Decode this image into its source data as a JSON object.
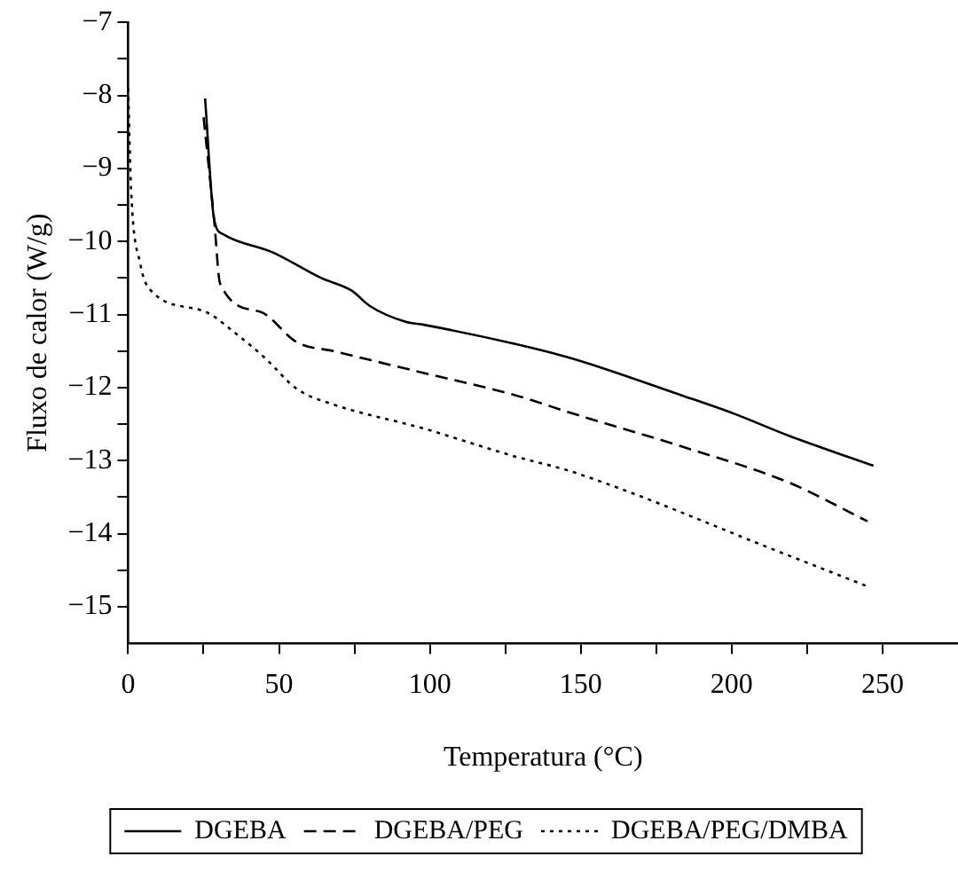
{
  "chart_data": {
    "type": "line",
    "xlabel": "Temperatura (°C)",
    "ylabel": "Fluxo de calor (W/g)",
    "xlim": [
      0,
      275
    ],
    "xticks": [
      0,
      {
        "value": 25,
        "label": null
      },
      50,
      {
        "value": 75,
        "label": null
      },
      100,
      {
        "value": 125,
        "label": null
      },
      150,
      {
        "value": 175,
        "label": null
      },
      200,
      {
        "value": 225,
        "label": null
      },
      250
    ],
    "ylim": [
      -15.5,
      -7
    ],
    "yticks": [
      -7,
      {
        "value": -7.5,
        "label": null
      },
      -8,
      {
        "value": -8.5,
        "label": null
      },
      -9,
      {
        "value": -9.5,
        "label": null
      },
      -10,
      {
        "value": -10.5,
        "label": null
      },
      -11,
      {
        "value": -11.5,
        "label": null
      },
      -12,
      {
        "value": -12.5,
        "label": null
      },
      -13,
      {
        "value": -13.5,
        "label": null
      },
      -14,
      {
        "value": -14.5,
        "label": null
      },
      -15
    ],
    "grid": false,
    "legend": "bottom",
    "marker": "none",
    "series": [
      {
        "name": "DGEBA",
        "color": "#000000",
        "line_style": "solid",
        "x": [
          25.5,
          28.5,
          31.5,
          48,
          64,
          74,
          80,
          92,
          98,
          128,
          147,
          183,
          201,
          219,
          247
        ],
        "values": [
          -8.04,
          -9.7,
          -9.9,
          -10.15,
          -10.5,
          -10.67,
          -10.88,
          -11.1,
          -11.14,
          -11.4,
          -11.6,
          -12.1,
          -12.36,
          -12.66,
          -13.07
        ]
      },
      {
        "name": "DGEBA/PEG",
        "color": "#000000",
        "line_style": "dashed",
        "x": [
          25,
          28.5,
          30.5,
          43.6,
          56,
          68,
          98,
          128,
          147,
          183,
          219,
          245
        ],
        "values": [
          -8.3,
          -9.7,
          -10.58,
          -10.96,
          -11.38,
          -11.5,
          -11.8,
          -12.1,
          -12.35,
          -12.8,
          -13.3,
          -13.83
        ]
      },
      {
        "name": "DGEBA/PEG/DMBA",
        "color": "#000000",
        "line_style": "dotted",
        "x": [
          0,
          1,
          4,
          7.3,
          25.5,
          35.7,
          45.5,
          56,
          68,
          98,
          128,
          147,
          219,
          245
        ],
        "values": [
          -7.9,
          -9.3,
          -10.3,
          -10.66,
          -10.96,
          -11.26,
          -11.6,
          -12.02,
          -12.23,
          -12.56,
          -12.94,
          -13.15,
          -14.3,
          -14.72
        ]
      }
    ]
  }
}
